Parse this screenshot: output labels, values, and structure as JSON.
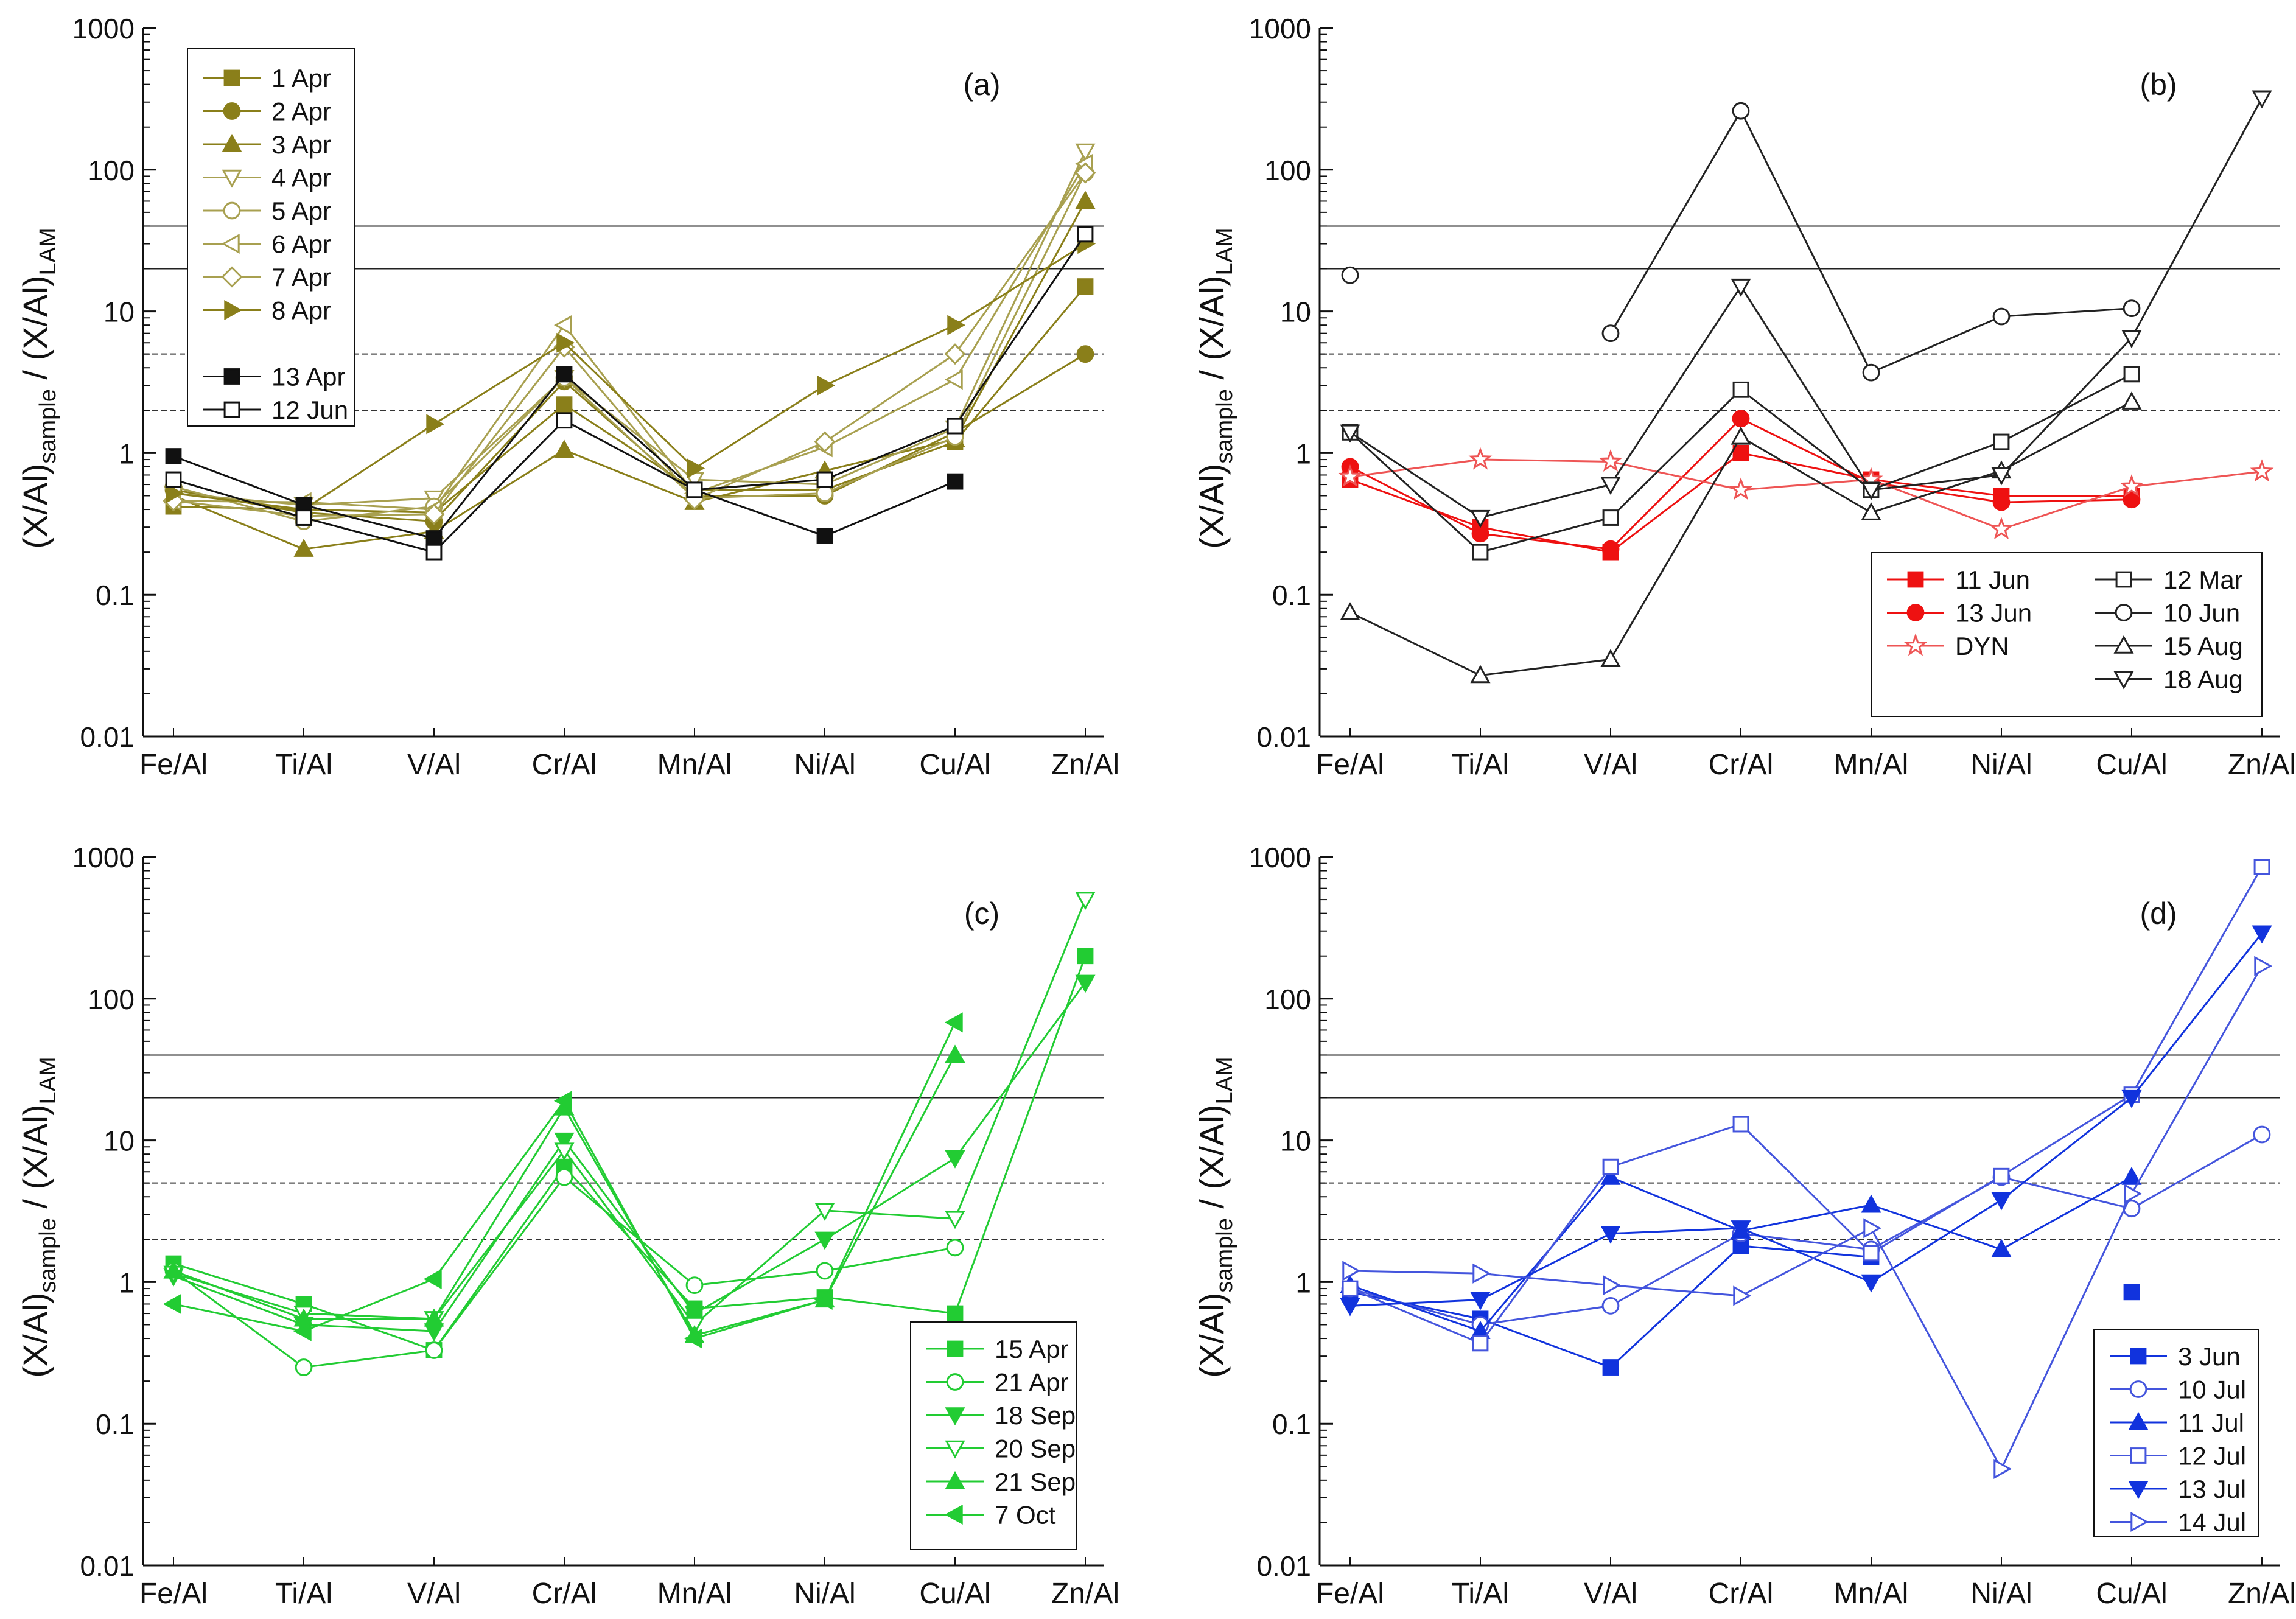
{
  "chart_data": [
    {
      "type": "line",
      "panel_label": "(a)",
      "yscale": "log",
      "ylim": [
        0.01,
        1000
      ],
      "categories": [
        "Fe/Al",
        "Ti/Al",
        "V/Al",
        "Cr/Al",
        "Mn/Al",
        "Ni/Al",
        "Cu/Al",
        "Zn/Al"
      ],
      "ylabel": {
        "pre": "(X/Al)",
        "sub1": "sample",
        "mid": " / (X/Al)",
        "sub2": "LAM"
      },
      "yticks": [
        0.01,
        0.1,
        1,
        10,
        100,
        1000
      ],
      "ytick_labels": [
        "0.01",
        "0.1",
        "1",
        "10",
        "100",
        "1000"
      ],
      "reference_lines": {
        "solid": [
          20,
          40
        ],
        "dashed": [
          2,
          5
        ]
      },
      "legend_position": "top-left",
      "series": [
        {
          "name": "1 Apr",
          "color": "#8a7f1a",
          "marker": "square",
          "filled": true,
          "values": [
            0.42,
            0.4,
            0.38,
            2.2,
            0.55,
            0.55,
            1.2,
            15
          ]
        },
        {
          "name": "2 Apr",
          "color": "#8a7f1a",
          "marker": "circle",
          "filled": true,
          "values": [
            0.55,
            0.38,
            0.33,
            3.2,
            0.5,
            0.5,
            1.4,
            5
          ]
        },
        {
          "name": "3 Apr",
          "color": "#8a7f1a",
          "marker": "triangle-up",
          "filled": true,
          "values": [
            0.5,
            0.21,
            0.28,
            1.05,
            0.45,
            0.75,
            1.25,
            60
          ]
        },
        {
          "name": "4 Apr",
          "color": "#a8a050",
          "marker": "triangle-down",
          "filled": false,
          "values": [
            0.52,
            0.43,
            0.48,
            3.4,
            0.65,
            0.6,
            1.5,
            135
          ]
        },
        {
          "name": "5 Apr",
          "color": "#a8a050",
          "marker": "circle",
          "filled": false,
          "values": [
            0.58,
            0.33,
            0.42,
            3.4,
            0.48,
            0.52,
            1.3,
            95
          ]
        },
        {
          "name": "6 Apr",
          "color": "#a8a050",
          "marker": "triangle-left",
          "filled": false,
          "values": [
            0.46,
            0.45,
            0.4,
            8,
            0.52,
            1.1,
            3.3,
            110
          ]
        },
        {
          "name": "7 Apr",
          "color": "#a8a050",
          "marker": "diamond",
          "filled": false,
          "values": [
            0.46,
            0.36,
            0.37,
            5.6,
            0.47,
            1.2,
            5,
            95
          ]
        },
        {
          "name": "8 Apr",
          "color": "#8a7f1a",
          "marker": "triangle-right",
          "filled": true,
          "values": [
            0.52,
            0.4,
            1.6,
            6,
            0.78,
            3,
            8,
            30
          ]
        },
        {
          "name": "13 Apr",
          "color": "#111111",
          "marker": "square",
          "filled": true,
          "values": [
            0.95,
            0.43,
            0.25,
            3.6,
            0.55,
            0.26,
            0.63,
            null
          ]
        },
        {
          "name": "12 Jun",
          "color": "#111111",
          "marker": "square",
          "filled": false,
          "values": [
            0.65,
            0.35,
            0.2,
            1.7,
            0.55,
            0.65,
            1.55,
            35
          ]
        }
      ]
    },
    {
      "type": "line",
      "panel_label": "(b)",
      "yscale": "log",
      "ylim": [
        0.01,
        1000
      ],
      "categories": [
        "Fe/Al",
        "Ti/Al",
        "V/Al",
        "Cr/Al",
        "Mn/Al",
        "Ni/Al",
        "Cu/Al",
        "Zn/Al"
      ],
      "ylabel": {
        "pre": "(X/Al)",
        "sub1": "sample",
        "mid": " / (X/Al)",
        "sub2": "LAM"
      },
      "yticks": [
        0.01,
        0.1,
        1,
        10,
        100,
        1000
      ],
      "ytick_labels": [
        "0.01",
        "0.1",
        "1",
        "10",
        "100",
        "1000"
      ],
      "reference_lines": {
        "solid": [
          20,
          40
        ],
        "dashed": [
          2,
          5
        ]
      },
      "legend_position": "bottom-right",
      "series": [
        {
          "name": "11 Jun",
          "color": "#ee1111",
          "marker": "square",
          "filled": true,
          "values": [
            0.65,
            0.3,
            0.2,
            1.0,
            0.65,
            0.5,
            0.5,
            null
          ]
        },
        {
          "name": "13 Jun",
          "color": "#ee1111",
          "marker": "circle",
          "filled": true,
          "values": [
            0.8,
            0.27,
            0.21,
            1.75,
            0.62,
            0.45,
            0.47,
            null
          ]
        },
        {
          "name": "DYN",
          "color": "#ee5555",
          "marker": "star",
          "filled": false,
          "values": [
            0.68,
            0.9,
            0.87,
            0.55,
            0.65,
            0.29,
            0.58,
            0.74
          ]
        },
        {
          "name": "12 Mar",
          "color": "#222222",
          "marker": "square",
          "filled": false,
          "values": [
            1.4,
            0.2,
            0.35,
            2.8,
            0.55,
            1.2,
            3.6,
            null
          ]
        },
        {
          "name": "10 Jun",
          "color": "#222222",
          "marker": "circle",
          "filled": false,
          "values": [
            18,
            null,
            7,
            260,
            3.7,
            9.2,
            10.5,
            null
          ]
        },
        {
          "name": "15 Aug",
          "color": "#222222",
          "marker": "triangle-up",
          "filled": false,
          "values": [
            0.075,
            0.027,
            0.035,
            1.3,
            0.38,
            0.75,
            2.3,
            null
          ]
        },
        {
          "name": "18 Aug",
          "color": "#222222",
          "marker": "triangle-down",
          "filled": false,
          "values": [
            1.4,
            0.35,
            0.6,
            15,
            0.55,
            0.7,
            6.5,
            320
          ]
        }
      ]
    },
    {
      "type": "line",
      "panel_label": "(c)",
      "yscale": "log",
      "ylim": [
        0.01,
        1000
      ],
      "categories": [
        "Fe/Al",
        "Ti/Al",
        "V/Al",
        "Cr/Al",
        "Mn/Al",
        "Ni/Al",
        "Cu/Al",
        "Zn/Al"
      ],
      "ylabel": {
        "pre": "(X/Al)",
        "sub1": "sample",
        "mid": " / (X/Al)",
        "sub2": "LAM"
      },
      "yticks": [
        0.01,
        0.1,
        1,
        10,
        100,
        1000
      ],
      "ytick_labels": [
        "0.01",
        "0.1",
        "1",
        "10",
        "100",
        "1000"
      ],
      "reference_lines": {
        "solid": [
          20,
          40
        ],
        "dashed": [
          2,
          5
        ]
      },
      "legend_position": "bottom-right",
      "series": [
        {
          "name": "15 Apr",
          "color": "#22cc33",
          "marker": "square",
          "filled": true,
          "values": [
            1.35,
            0.7,
            0.33,
            6.5,
            0.65,
            0.78,
            0.6,
            200
          ]
        },
        {
          "name": "21 Apr",
          "color": "#22cc33",
          "marker": "circle",
          "filled": false,
          "values": [
            1.2,
            0.25,
            0.33,
            5.5,
            0.95,
            1.2,
            1.75,
            null
          ]
        },
        {
          "name": "18 Sep",
          "color": "#22cc33",
          "marker": "triangle-down",
          "filled": true,
          "values": [
            1.1,
            0.5,
            0.45,
            10,
            0.6,
            2,
            7.5,
            130
          ]
        },
        {
          "name": "20 Sep",
          "color": "#22cc33",
          "marker": "triangle-down",
          "filled": false,
          "values": [
            1.15,
            0.6,
            0.55,
            8.5,
            0.5,
            3.2,
            2.8,
            500
          ]
        },
        {
          "name": "21 Sep",
          "color": "#22cc33",
          "marker": "triangle-up",
          "filled": true,
          "values": [
            1.2,
            0.55,
            0.55,
            17,
            0.42,
            0.75,
            40,
            null
          ]
        },
        {
          "name": "7 Oct",
          "color": "#22cc33",
          "marker": "triangle-left",
          "filled": true,
          "values": [
            0.7,
            0.45,
            1.05,
            19,
            0.4,
            0.75,
            68,
            null
          ]
        }
      ]
    },
    {
      "type": "line",
      "panel_label": "(d)",
      "yscale": "log",
      "ylim": [
        0.01,
        1000
      ],
      "categories": [
        "Fe/Al",
        "Ti/Al",
        "V/Al",
        "Cr/Al",
        "Mn/Al",
        "Ni/Al",
        "Cu/Al",
        "Zn/Al"
      ],
      "ylabel": {
        "pre": "(X/Al)",
        "sub1": "sample",
        "mid": " / (X/Al)",
        "sub2": "LAM"
      },
      "yticks": [
        0.01,
        0.1,
        1,
        10,
        100,
        1000
      ],
      "ytick_labels": [
        "0.01",
        "0.1",
        "1",
        "10",
        "100",
        "1000"
      ],
      "reference_lines": {
        "solid": [
          20,
          40
        ],
        "dashed": [
          2,
          5
        ]
      },
      "legend_position": "bottom-right",
      "series": [
        {
          "name": "3 Jun",
          "color": "#1133dd",
          "marker": "square",
          "filled": true,
          "values": [
            0.85,
            0.55,
            0.25,
            1.8,
            1.5,
            null,
            0.85,
            null
          ]
        },
        {
          "name": "10 Jul",
          "color": "#4455dd",
          "marker": "circle",
          "filled": false,
          "values": [
            0.9,
            0.5,
            0.68,
            2.2,
            1.7,
            5.5,
            3.3,
            11
          ]
        },
        {
          "name": "11 Jul",
          "color": "#1133dd",
          "marker": "triangle-up",
          "filled": true,
          "values": [
            0.95,
            0.45,
            5.5,
            2.3,
            3.5,
            1.7,
            5.5,
            null
          ]
        },
        {
          "name": "12 Jul",
          "color": "#4455dd",
          "marker": "square",
          "filled": false,
          "values": [
            0.9,
            0.37,
            6.5,
            13,
            1.6,
            5.6,
            21,
            850
          ]
        },
        {
          "name": "13 Jul",
          "color": "#1133dd",
          "marker": "triangle-down",
          "filled": true,
          "values": [
            0.68,
            0.75,
            2.2,
            2.4,
            1.0,
            3.8,
            20,
            290
          ]
        },
        {
          "name": "14 Jul",
          "color": "#4455dd",
          "marker": "triangle-right",
          "filled": false,
          "values": [
            1.2,
            1.15,
            0.95,
            0.8,
            2.4,
            0.048,
            4.2,
            170
          ]
        }
      ]
    }
  ]
}
